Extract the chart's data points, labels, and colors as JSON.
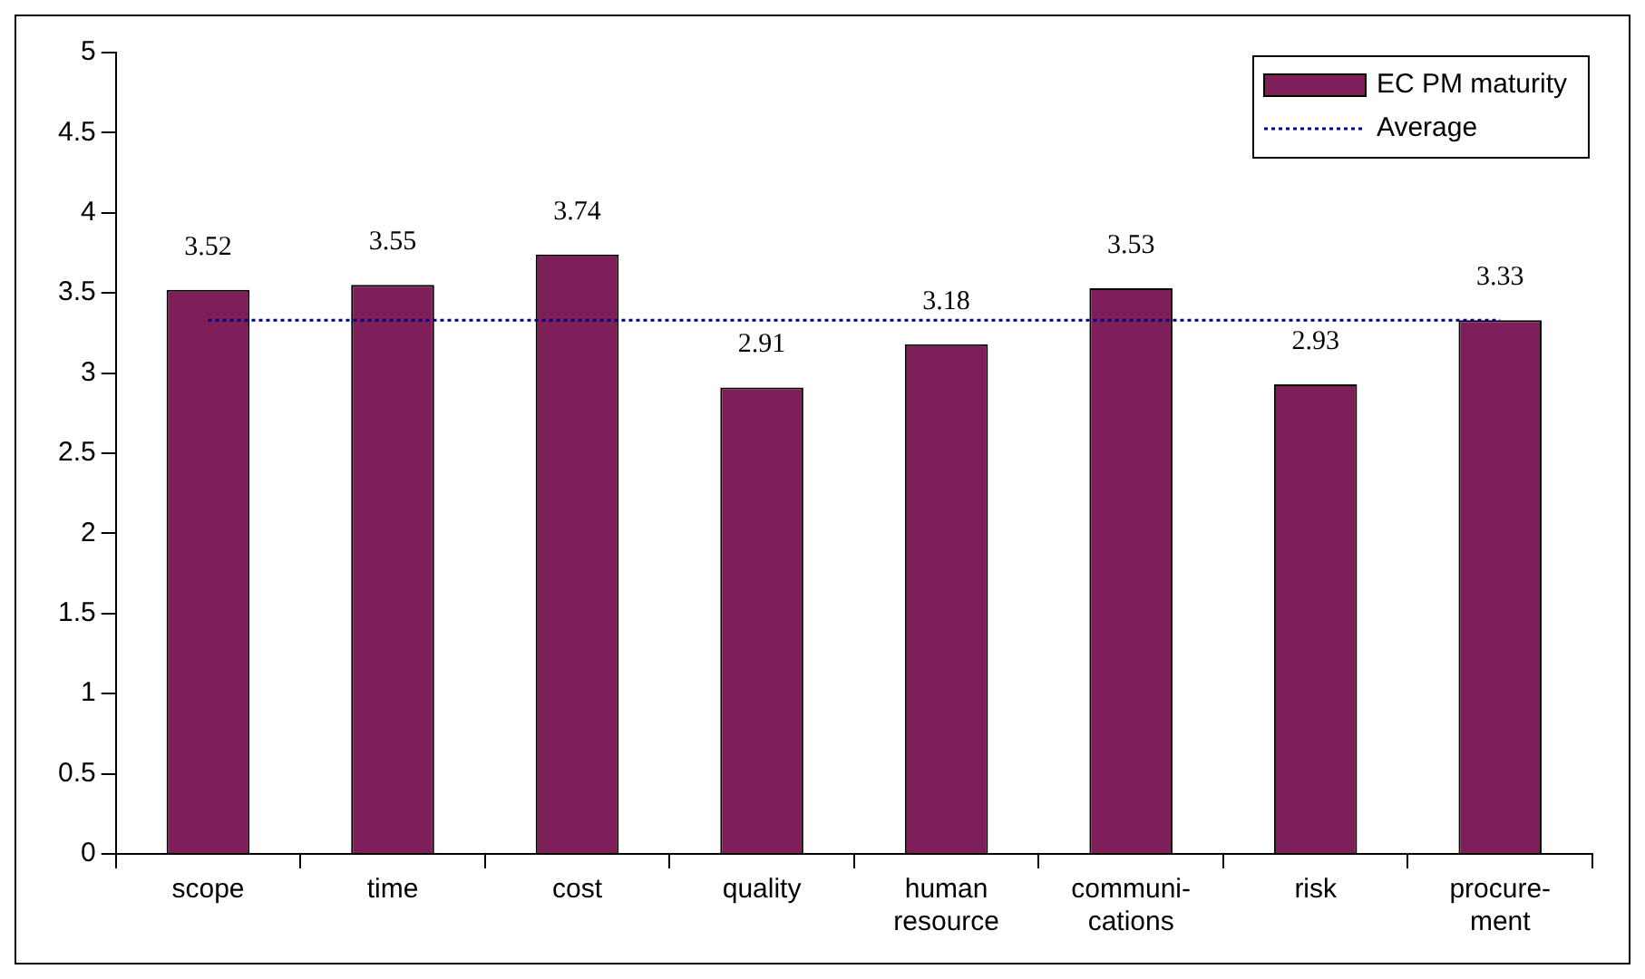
{
  "chart_data": {
    "type": "bar",
    "categories": [
      "scope",
      "time",
      "cost",
      "quality",
      "human\nresource",
      "communi-\ncations",
      "risk",
      "procure-\nment"
    ],
    "series": [
      {
        "name": "EC PM maturity",
        "color": "#7f1f5a",
        "values": [
          3.52,
          3.55,
          3.74,
          2.91,
          3.18,
          3.53,
          2.93,
          3.33
        ],
        "value_labels": [
          "3.52",
          "3.55",
          "3.74",
          "2.91",
          "3.18",
          "3.53",
          "2.93",
          "3.33"
        ]
      },
      {
        "name": "Average",
        "type": "line",
        "color": "#000080",
        "line_style": "dotted",
        "marker": "none",
        "values": [
          3.33,
          3.33,
          3.33,
          3.33,
          3.33,
          3.33,
          3.33,
          3.33
        ]
      }
    ],
    "ylim": [
      0,
      5
    ],
    "yticks": [
      0,
      0.5,
      1,
      1.5,
      2,
      2.5,
      3,
      3.5,
      4,
      4.5,
      5
    ],
    "grid": false,
    "legend": "top right"
  }
}
